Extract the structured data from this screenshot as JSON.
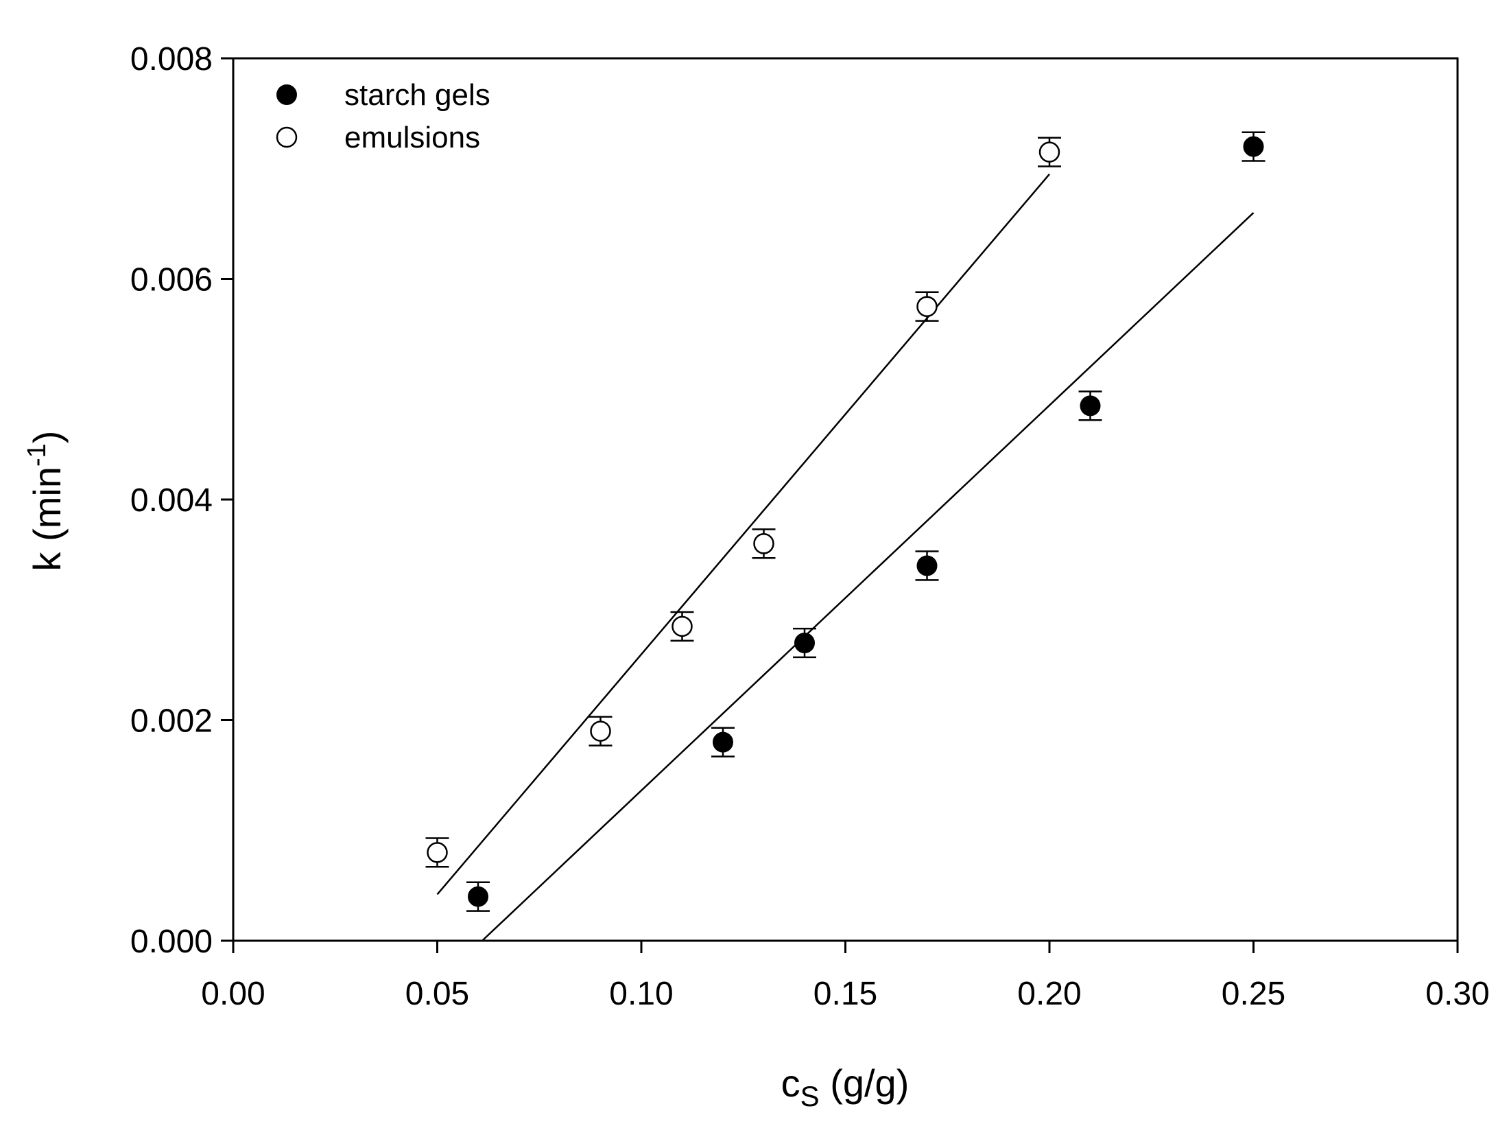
{
  "chart_data": {
    "type": "scatter",
    "title": "",
    "xlabel": {
      "main": "c",
      "sub": "S",
      "unit": "(g/g)"
    },
    "ylabel": {
      "main": "k (min",
      "sup": "-1",
      "close": ")"
    },
    "xlim": [
      0.0,
      0.3
    ],
    "ylim": [
      0.0,
      0.008
    ],
    "xticks": [
      0.0,
      0.05,
      0.1,
      0.15,
      0.2,
      0.25,
      0.3
    ],
    "xtick_labels": [
      "0.00",
      "0.05",
      "0.10",
      "0.15",
      "0.20",
      "0.25",
      "0.30"
    ],
    "yticks": [
      0.0,
      0.002,
      0.004,
      0.006,
      0.008
    ],
    "ytick_labels": [
      "0.000",
      "0.002",
      "0.004",
      "0.006",
      "0.008"
    ],
    "grid": false,
    "legend_position": "top-left",
    "series": [
      {
        "name": "starch gels",
        "marker": "filled-circle",
        "x": [
          0.06,
          0.12,
          0.14,
          0.17,
          0.21,
          0.25
        ],
        "y": [
          0.0004,
          0.0018,
          0.0027,
          0.0034,
          0.00485,
          0.0072
        ],
        "error": [
          0.00013,
          0.00013,
          0.00013,
          0.00013,
          0.00013,
          0.00013
        ],
        "fit_line": {
          "x": [
            0.061,
            0.25
          ],
          "y": [
            0.0,
            0.0066
          ]
        }
      },
      {
        "name": "emulsions",
        "marker": "open-circle",
        "x": [
          0.05,
          0.09,
          0.11,
          0.13,
          0.17,
          0.2
        ],
        "y": [
          0.0008,
          0.0019,
          0.00285,
          0.0036,
          0.00575,
          0.00715
        ],
        "error": [
          0.00013,
          0.00013,
          0.00013,
          0.00013,
          0.00013,
          0.00013
        ],
        "fit_line": {
          "x": [
            0.05,
            0.2
          ],
          "y": [
            0.00042,
            0.00695
          ]
        }
      }
    ]
  }
}
